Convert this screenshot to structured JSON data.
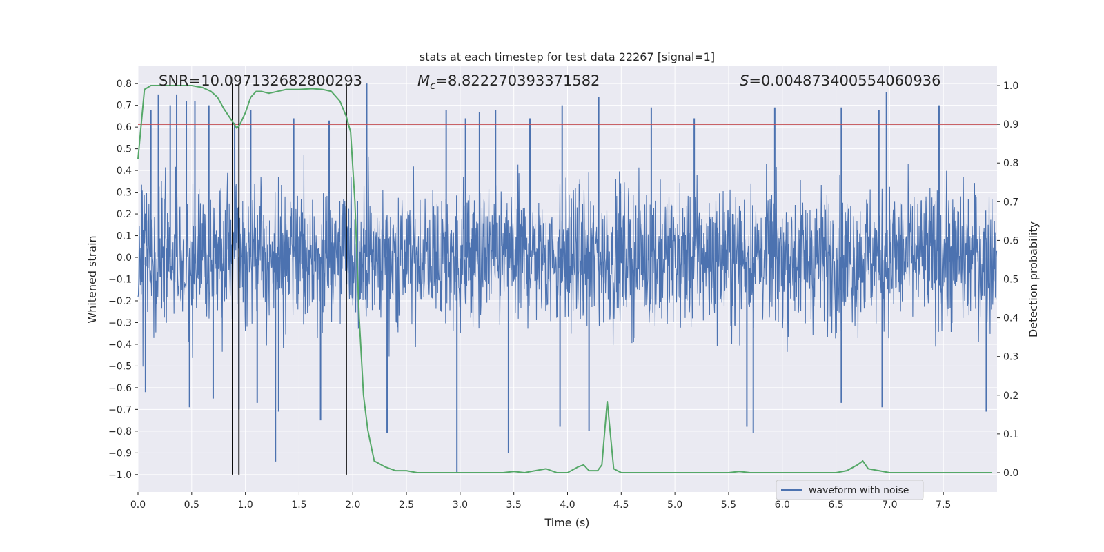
{
  "chart_data": {
    "type": "line",
    "title": "stats at each timestep for test data 22267 [signal=1]",
    "xlabel": "Time (s)",
    "ylabel_left": "Whitened strain",
    "ylabel_right": "Detection probability",
    "xlim": [
      0,
      8
    ],
    "ylim_left": [
      -1.08,
      0.88
    ],
    "ylim_right": [
      -0.05,
      1.05
    ],
    "grid": true,
    "xticks": [
      "0.0",
      "0.5",
      "1.0",
      "1.5",
      "2.0",
      "2.5",
      "3.0",
      "3.5",
      "4.0",
      "4.5",
      "5.0",
      "5.5",
      "6.0",
      "6.5",
      "7.0",
      "7.5"
    ],
    "xtick_values": [
      0,
      0.5,
      1,
      1.5,
      2,
      2.5,
      3,
      3.5,
      4,
      4.5,
      5,
      5.5,
      6,
      6.5,
      7,
      7.5
    ],
    "yticks_left": [
      "0.8",
      "0.7",
      "0.6",
      "0.5",
      "0.4",
      "0.3",
      "0.2",
      "0.1",
      "0.0",
      "−0.1",
      "−0.2",
      "−0.3",
      "−0.4",
      "−0.5",
      "−0.6",
      "−0.7",
      "−0.8",
      "−0.9",
      "−1.0"
    ],
    "ytick_values_left": [
      0.8,
      0.7,
      0.6,
      0.5,
      0.4,
      0.3,
      0.2,
      0.1,
      0.0,
      -0.1,
      -0.2,
      -0.3,
      -0.4,
      -0.5,
      -0.6,
      -0.7,
      -0.8,
      -0.9,
      -1.0
    ],
    "yticks_right": [
      "1.0",
      "0.9",
      "0.8",
      "0.7",
      "0.6",
      "0.5",
      "0.4",
      "0.3",
      "0.2",
      "0.1",
      "0.0"
    ],
    "ytick_values_right": [
      1.0,
      0.9,
      0.8,
      0.7,
      0.6,
      0.5,
      0.4,
      0.3,
      0.2,
      0.1,
      0.0
    ],
    "annotations": {
      "snr": "SNR=10.097132682800293",
      "mc_prefix": "M",
      "mc_sub": "c",
      "mc_value": "=8.822270393371582",
      "s_prefix": "S",
      "s_value": "=0.004873400554060936"
    },
    "threshold_probability": 0.9,
    "vertical_lines_time": [
      0.88,
      0.94,
      1.94
    ],
    "series": [
      {
        "name": "waveform with noise",
        "axis": "left",
        "color": "#4c72b0",
        "kind": "noise",
        "duration": 8.0,
        "spikes": [
          [
            0.12,
            0.68
          ],
          [
            0.19,
            0.75
          ],
          [
            0.3,
            0.7
          ],
          [
            0.36,
            0.75
          ],
          [
            0.45,
            0.72
          ],
          [
            0.53,
            0.72
          ],
          [
            0.66,
            0.7
          ],
          [
            0.9,
            0.62
          ],
          [
            1.05,
            0.68
          ],
          [
            1.45,
            0.64
          ],
          [
            1.78,
            0.63
          ],
          [
            2.13,
            0.8
          ],
          [
            2.87,
            0.68
          ],
          [
            3.05,
            0.64
          ],
          [
            3.18,
            0.67
          ],
          [
            3.33,
            0.68
          ],
          [
            3.65,
            0.64
          ],
          [
            3.95,
            0.7
          ],
          [
            4.29,
            0.74
          ],
          [
            4.78,
            0.69
          ],
          [
            5.18,
            0.64
          ],
          [
            5.93,
            0.69
          ],
          [
            6.55,
            0.69
          ],
          [
            6.9,
            0.68
          ],
          [
            6.97,
            0.76
          ],
          [
            7.46,
            0.7
          ],
          [
            0.07,
            -0.62
          ],
          [
            0.48,
            -0.69
          ],
          [
            0.7,
            -0.65
          ],
          [
            0.94,
            -0.7
          ],
          [
            1.11,
            -0.67
          ],
          [
            1.28,
            -0.94
          ],
          [
            1.31,
            -0.71
          ],
          [
            1.7,
            -0.75
          ],
          [
            2.32,
            -0.81
          ],
          [
            2.97,
            -0.99
          ],
          [
            3.45,
            -0.9
          ],
          [
            3.93,
            -0.78
          ],
          [
            4.2,
            -0.8
          ],
          [
            5.67,
            -0.78
          ],
          [
            5.73,
            -0.81
          ],
          [
            6.55,
            -0.67
          ],
          [
            6.93,
            -0.69
          ],
          [
            7.9,
            -0.71
          ]
        ]
      },
      {
        "name": "",
        "axis": "right",
        "color": "#55a868",
        "kind": "line",
        "x": [
          0,
          0.03,
          0.06,
          0.12,
          0.2,
          0.3,
          0.4,
          0.5,
          0.6,
          0.68,
          0.74,
          0.8,
          0.86,
          0.92,
          0.95,
          1.0,
          1.05,
          1.1,
          1.15,
          1.22,
          1.3,
          1.38,
          1.5,
          1.62,
          1.72,
          1.8,
          1.88,
          1.94,
          1.98,
          2.02,
          2.06,
          2.1,
          2.14,
          2.2,
          2.3,
          2.4,
          2.5,
          2.6,
          2.7,
          2.8,
          2.9,
          3.0,
          3.2,
          3.4,
          3.5,
          3.6,
          3.7,
          3.8,
          3.9,
          4.0,
          4.1,
          4.15,
          4.2,
          4.28,
          4.32,
          4.37,
          4.43,
          4.5,
          4.6,
          5.0,
          5.5,
          5.6,
          5.7,
          5.8,
          6.0,
          6.5,
          6.6,
          6.7,
          6.75,
          6.8,
          6.9,
          7.0,
          7.1,
          7.5,
          7.8,
          7.95
        ],
        "y": [
          0.81,
          0.9,
          0.99,
          1.0,
          1.0,
          1.0,
          1.0,
          1.0,
          0.995,
          0.985,
          0.97,
          0.94,
          0.915,
          0.89,
          0.9,
          0.93,
          0.97,
          0.985,
          0.985,
          0.98,
          0.985,
          0.99,
          0.99,
          0.992,
          0.99,
          0.985,
          0.96,
          0.92,
          0.88,
          0.7,
          0.4,
          0.2,
          0.11,
          0.03,
          0.015,
          0.005,
          0.005,
          0.0,
          0.0,
          0.0,
          0.0,
          0.0,
          0.0,
          0.0,
          0.003,
          0.0,
          0.005,
          0.01,
          0.0,
          0.0,
          0.015,
          0.02,
          0.005,
          0.005,
          0.02,
          0.185,
          0.01,
          0.0,
          0.0,
          0.0,
          0.0,
          0.003,
          0.0,
          0.0,
          0.0,
          0.0,
          0.005,
          0.02,
          0.03,
          0.01,
          0.005,
          0.0,
          0.0,
          0.0,
          0.0,
          0.0
        ]
      }
    ],
    "legend": {
      "entries": [
        "waveform with noise"
      ],
      "placement": "lower right"
    },
    "colors": {
      "background": "#eaeaf2",
      "grid": "#ffffff",
      "threshold": "#c44e52",
      "vlines": "#000000"
    }
  }
}
